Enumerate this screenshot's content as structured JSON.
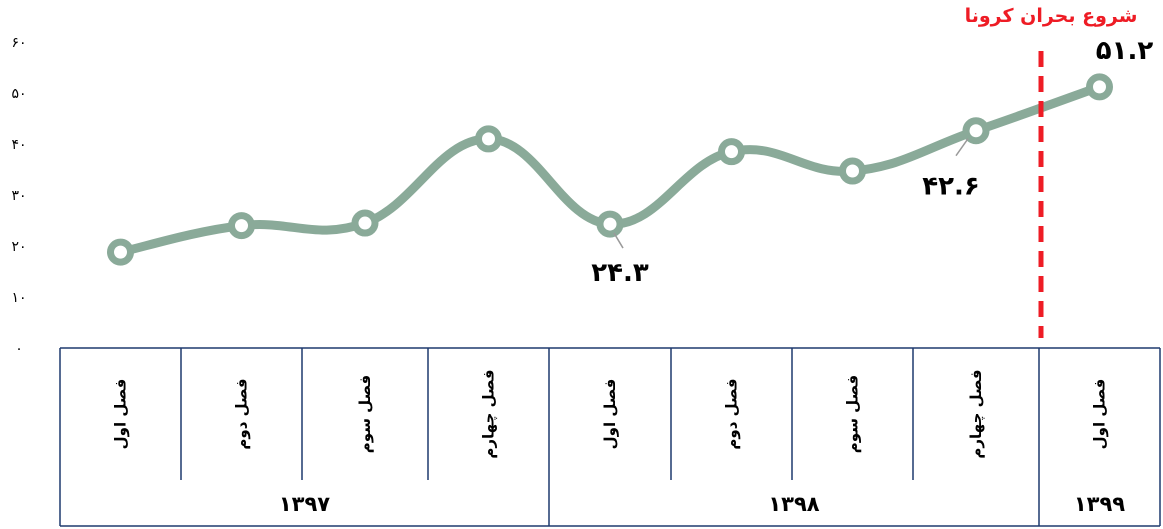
{
  "chart_data": {
    "type": "line",
    "categories": [
      "فصل اول",
      "فصل دوم",
      "فصل سوم",
      "فصل چهارم",
      "فصل اول",
      "فصل دوم",
      "فصل سوم",
      "فصل چهارم",
      "فصل اول"
    ],
    "years": [
      {
        "label": "۱۳۹۷",
        "span": 4
      },
      {
        "label": "۱۳۹۸",
        "span": 4
      },
      {
        "label": "۱۳۹۹",
        "span": 1
      }
    ],
    "series": [
      {
        "values": [
          18.8,
          24.0,
          24.5,
          41.0,
          24.3,
          38.5,
          34.7,
          42.6,
          51.2
        ]
      }
    ],
    "data_labels": [
      {
        "index": 4,
        "text": "۲۴.۳",
        "position": "below"
      },
      {
        "index": 7,
        "text": "۴۲.۶",
        "position": "below-left"
      },
      {
        "index": 8,
        "text": "۵۱.۲",
        "position": "above"
      }
    ],
    "yticks": [
      "۰",
      "۱۰",
      "۲۰",
      "۳۰",
      "۴۰",
      "۵۰",
      "۶۰"
    ],
    "ylim": [
      0,
      60
    ],
    "annotation": {
      "text": "شروع بحران کرونا",
      "between_index": [
        7,
        8
      ],
      "style": "dashed-vertical"
    },
    "colors": {
      "line": "#8aaa99",
      "marker_fill": "#ffffff",
      "annotation": "#ee1c25",
      "axis": "#1f3a6e"
    },
    "grid": false,
    "legend": "none"
  }
}
